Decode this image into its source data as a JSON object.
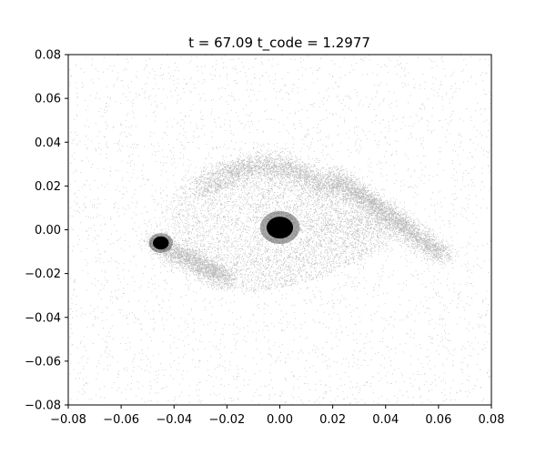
{
  "chart_data": {
    "type": "scatter",
    "title": "t = 67.09        t_code = 1.2977",
    "xlabel": "",
    "ylabel": "",
    "xlim": [
      -0.08,
      0.08
    ],
    "ylim": [
      -0.08,
      0.08
    ],
    "grid": false,
    "point_color": "#000000",
    "x_ticks": [
      "−0.08",
      "−0.06",
      "−0.04",
      "−0.02",
      "0.00",
      "0.02",
      "0.04",
      "0.06",
      "0.08"
    ],
    "x_tick_values": [
      -0.08,
      -0.06,
      -0.04,
      -0.02,
      0.0,
      0.02,
      0.04,
      0.06,
      0.08
    ],
    "y_ticks": [
      "−0.08",
      "−0.06",
      "−0.04",
      "−0.02",
      "0.00",
      "0.02",
      "0.04",
      "0.06",
      "0.08"
    ],
    "y_tick_values": [
      -0.08,
      -0.06,
      -0.04,
      -0.02,
      0.0,
      0.02,
      0.04,
      0.06,
      0.08
    ],
    "features": [
      {
        "name": "central-clump",
        "x": 0.0,
        "y": 0.001,
        "radius": 0.005
      },
      {
        "name": "left-clump",
        "x": -0.045,
        "y": -0.006,
        "radius": 0.003
      },
      {
        "name": "right-arm",
        "from": [
          0.02,
          0.025
        ],
        "to": [
          0.062,
          -0.012
        ]
      },
      {
        "name": "left-arm",
        "from": [
          -0.048,
          -0.005
        ],
        "to": [
          -0.02,
          -0.022
        ]
      },
      {
        "name": "ring",
        "center": [
          0.002,
          0.002
        ],
        "rx": 0.045,
        "ry": 0.028
      }
    ]
  }
}
